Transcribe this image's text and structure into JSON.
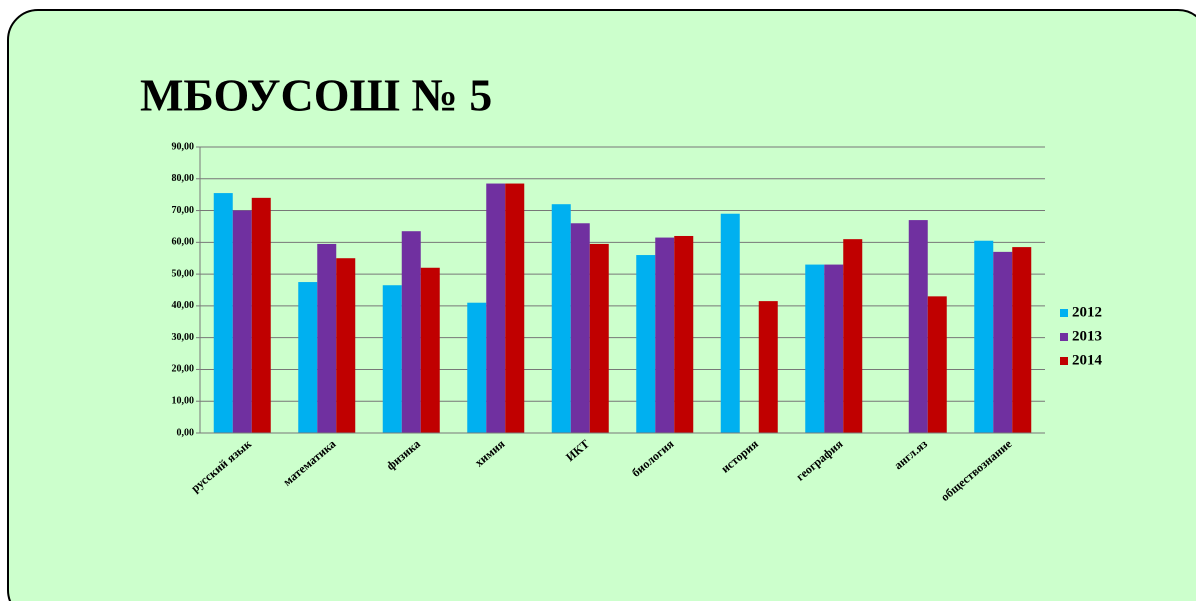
{
  "chart_data": {
    "type": "bar",
    "title": "МБОУСОШ № 5",
    "categories": [
      "русский язык",
      "математика",
      "физика",
      "химия",
      "ИКТ",
      "биология",
      "история",
      "география",
      "англ.яз",
      "обществознание"
    ],
    "series": [
      {
        "name": "2012",
        "color": "#00b0f0",
        "values": [
          75.5,
          47.5,
          46.5,
          41,
          72,
          56,
          69,
          53,
          null,
          60.5
        ]
      },
      {
        "name": "2013",
        "color": "#7030a0",
        "values": [
          70,
          59.5,
          63.5,
          78.5,
          66,
          61.5,
          null,
          53,
          67,
          57
        ]
      },
      {
        "name": "2014",
        "color": "#c00000",
        "values": [
          74,
          55,
          52,
          78.5,
          59.5,
          62,
          41.5,
          61,
          43,
          58.5
        ]
      }
    ],
    "ylim": [
      0,
      90
    ],
    "yticks": [
      {
        "value": 0,
        "label": "0,00"
      },
      {
        "value": 10,
        "label": "10,00"
      },
      {
        "value": 20,
        "label": "20,00"
      },
      {
        "value": 30,
        "label": "30,00"
      },
      {
        "value": 40,
        "label": "40,00"
      },
      {
        "value": 50,
        "label": "50,00"
      },
      {
        "value": 60,
        "label": "60,00"
      },
      {
        "value": 70,
        "label": "70,00"
      },
      {
        "value": 80,
        "label": "80,00"
      },
      {
        "value": 90,
        "label": "90,00"
      }
    ],
    "grid": true,
    "legend": "right"
  }
}
